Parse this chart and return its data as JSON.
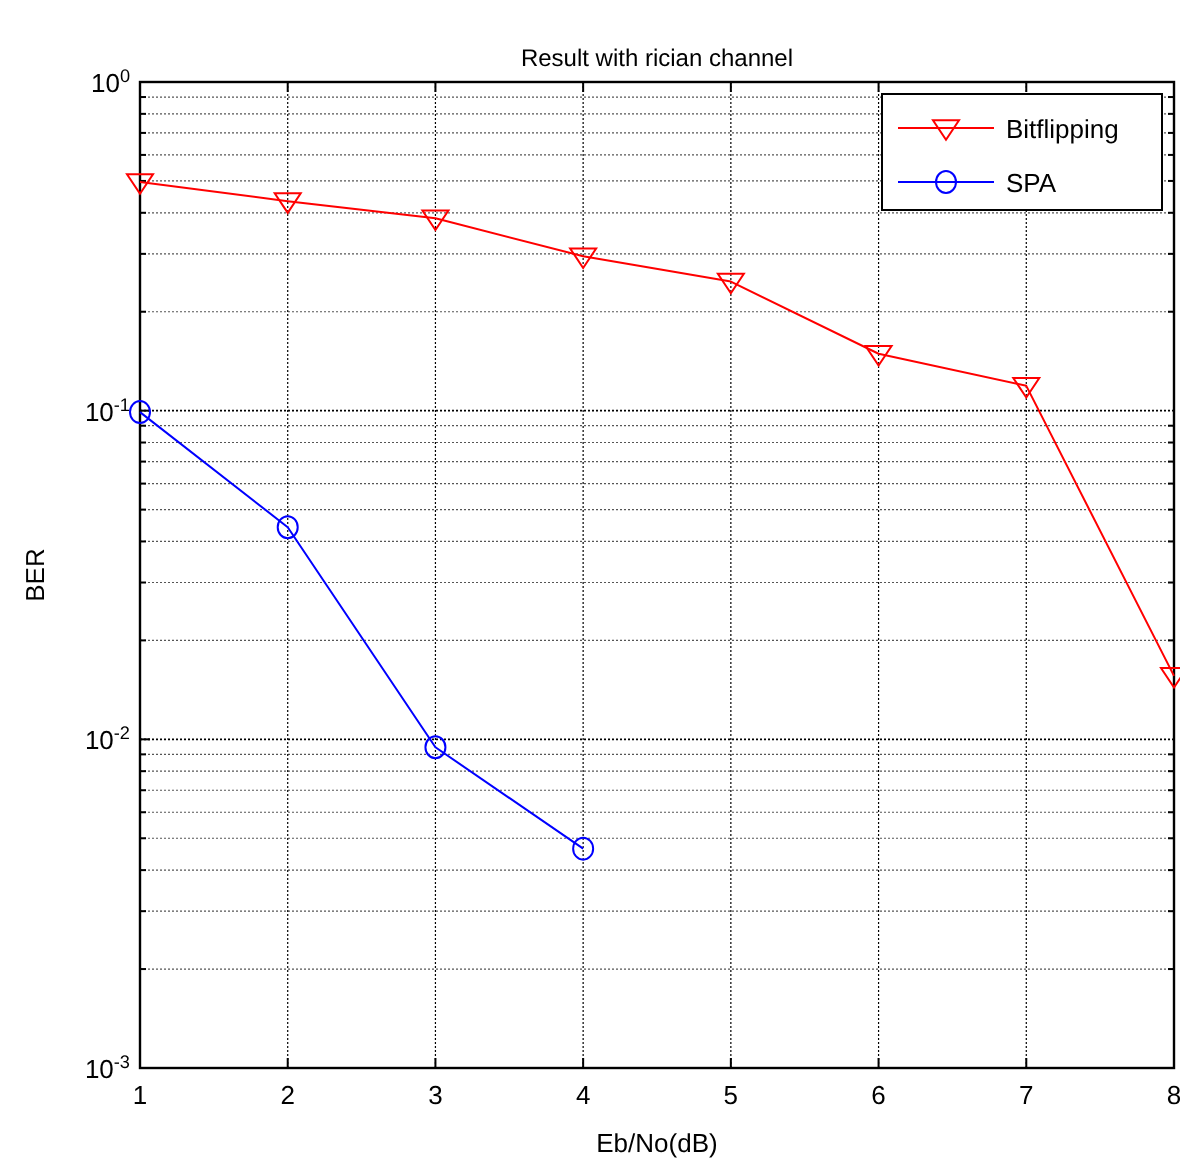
{
  "chart_data": {
    "type": "line",
    "title": "Result with rician channel",
    "xlabel": "Eb/No(dB)",
    "ylabel": "BER",
    "x": [
      1,
      2,
      3,
      4,
      5,
      6,
      7,
      8
    ],
    "series": [
      {
        "name": "Bitflipping",
        "color": "#ff0000",
        "marker": "triangle",
        "values": [
          0.496,
          0.434,
          0.385,
          0.295,
          0.247,
          0.149,
          0.119,
          0.0156
        ]
      },
      {
        "name": "SPA",
        "color": "#0000ff",
        "marker": "circle",
        "values": [
          0.099,
          0.0442,
          0.00946,
          0.00465,
          null,
          null,
          null,
          null
        ]
      }
    ],
    "log": "y",
    "xlim": [
      1,
      8
    ],
    "ylim": [
      0.001,
      1
    ],
    "xticks": [
      1,
      2,
      3,
      4,
      5,
      6,
      7,
      8
    ],
    "yticks": [
      {
        "value": 0.001,
        "label": "10$^{-3}$"
      },
      {
        "value": 0.01,
        "label": "10$^{-2}$"
      },
      {
        "value": 0.1,
        "label": "10$^{-1}$"
      },
      {
        "value": 1,
        "label": "10$^{0}$"
      }
    ],
    "grid": true,
    "legend": "top right",
    "line_style": "solid"
  }
}
